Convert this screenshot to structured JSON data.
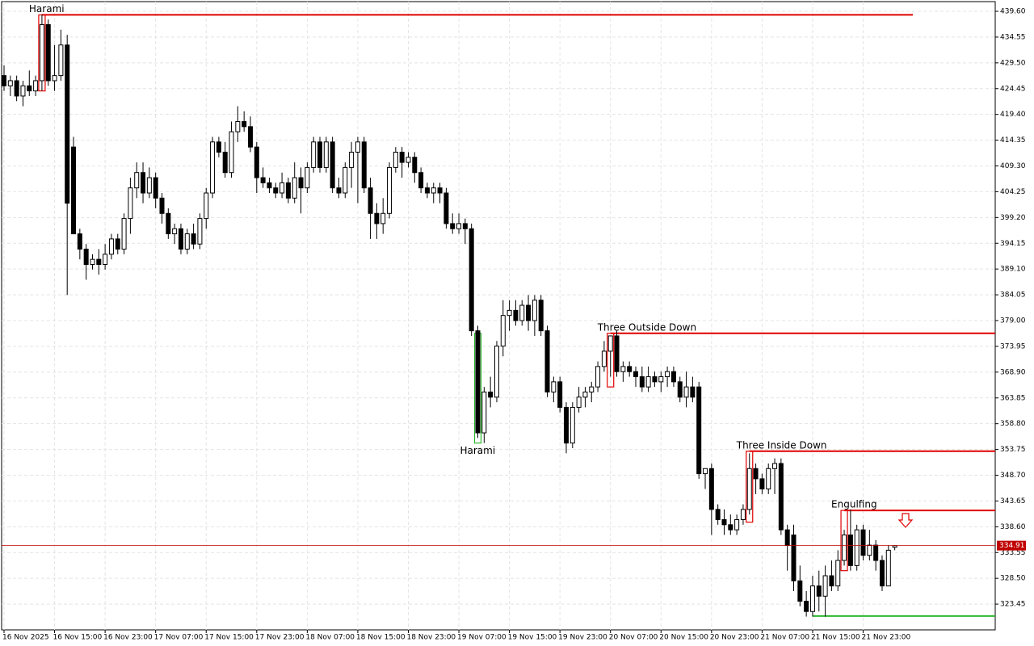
{
  "chart_data": {
    "type": "candlestick",
    "ylim": [
      318.4,
      441.5
    ],
    "yticks": [
      {
        "value": 439.6,
        "label": "439.60"
      },
      434.55,
      {
        "value": 429.5,
        "label": "429.50"
      },
      424.45,
      {
        "value": 419.4,
        "label": "419.40"
      },
      414.35,
      {
        "value": 409.3,
        "label": "409.30"
      },
      404.25,
      {
        "value": 399.2,
        "label": "399.20"
      },
      394.15,
      {
        "value": 389.1,
        "label": "389.10"
      },
      384.05,
      {
        "value": 379,
        "label": "379.00"
      },
      373.95,
      {
        "value": 368.9,
        "label": "368.90"
      },
      363.85,
      {
        "value": 358.8,
        "label": "358.80"
      },
      353.75,
      {
        "value": 348.7,
        "label": "348.70"
      },
      343.65,
      {
        "value": 338.6,
        "label": "338.60"
      },
      333.55,
      {
        "value": 328.5,
        "label": "328.50"
      },
      323.45
    ],
    "grid": true,
    "up_color": "#ffffff",
    "down_color": "#000000",
    "categories": [
      "16 Nov 2025",
      "16 Nov 15:00",
      "16 Nov 23:00",
      "17 Nov 07:00",
      "17 Nov 15:00",
      "17 Nov 23:00",
      "18 Nov 07:00",
      "18 Nov 15:00",
      "18 Nov 23:00",
      "19 Nov 07:00",
      "19 Nov 15:00",
      "19 Nov 23:00",
      "20 Nov 07:00",
      "20 Nov 15:00",
      "20 Nov 23:00",
      "21 Nov 07:00",
      "21 Nov 15:00",
      "21 Nov 23:00"
    ],
    "current_price": 334.91,
    "ohlc": [
      [
        427,
        429,
        424,
        425
      ],
      [
        425,
        427,
        423,
        426
      ],
      [
        426,
        427,
        422,
        423
      ],
      [
        423,
        426,
        421,
        425
      ],
      [
        425,
        428,
        423,
        424
      ],
      [
        424,
        427,
        423,
        426
      ],
      [
        426,
        439,
        424,
        437
      ],
      [
        437,
        438,
        425,
        426
      ],
      [
        426,
        433,
        424,
        427
      ],
      [
        427,
        436,
        426,
        433
      ],
      [
        433,
        435,
        384,
        402
      ],
      [
        413,
        415,
        396,
        396
      ],
      [
        396,
        397,
        391,
        393
      ],
      [
        393,
        394,
        387,
        390
      ],
      [
        390,
        392,
        389,
        391
      ],
      [
        391,
        393,
        388,
        390
      ],
      [
        390,
        394,
        389,
        392
      ],
      [
        392,
        396,
        391,
        395
      ],
      [
        395,
        396,
        392,
        393
      ],
      [
        393,
        400,
        392,
        399
      ],
      [
        399,
        407,
        396,
        405
      ],
      [
        405,
        410,
        403,
        408
      ],
      [
        408,
        410,
        402,
        404
      ],
      [
        404,
        409,
        403,
        407
      ],
      [
        407,
        408,
        401,
        403
      ],
      [
        403,
        404,
        398,
        400
      ],
      [
        400,
        401,
        395,
        396
      ],
      [
        396,
        398,
        394,
        397
      ],
      [
        397,
        398,
        392,
        393
      ],
      [
        393,
        397,
        392,
        396
      ],
      [
        396,
        398,
        393,
        394
      ],
      [
        394,
        400,
        393,
        399
      ],
      [
        399,
        405,
        397,
        404
      ],
      [
        404,
        415,
        403,
        414
      ],
      [
        414,
        415,
        411,
        412
      ],
      [
        412,
        414,
        407,
        408
      ],
      [
        408,
        418,
        407,
        416
      ],
      [
        416,
        421,
        414,
        418
      ],
      [
        418,
        420,
        416,
        417
      ],
      [
        417,
        419,
        412,
        413
      ],
      [
        413,
        414,
        404,
        407
      ],
      [
        407,
        409,
        405,
        406
      ],
      [
        406,
        407,
        404,
        405
      ],
      [
        405,
        406,
        403,
        404
      ],
      [
        404,
        408,
        403,
        406
      ],
      [
        406,
        407,
        402,
        403
      ],
      [
        403,
        410,
        402,
        407
      ],
      [
        407,
        409,
        400,
        405
      ],
      [
        405,
        410,
        404,
        409
      ],
      [
        409,
        415,
        408,
        414
      ],
      [
        414,
        415,
        408,
        409
      ],
      [
        409,
        415,
        408,
        414
      ],
      [
        414,
        415,
        404,
        405
      ],
      [
        405,
        407,
        403,
        404
      ],
      [
        404,
        410,
        403,
        409
      ],
      [
        409,
        414,
        405,
        412
      ],
      [
        412,
        415,
        402,
        414
      ],
      [
        414,
        415,
        404,
        405
      ],
      [
        405,
        407,
        395,
        400
      ],
      [
        400,
        402,
        395,
        398
      ],
      [
        398,
        403,
        396,
        400
      ],
      [
        400,
        410,
        399,
        409
      ],
      [
        409,
        413,
        408,
        412
      ],
      [
        412,
        413,
        407,
        410
      ],
      [
        410,
        412,
        409,
        411
      ],
      [
        411,
        412,
        406,
        408
      ],
      [
        408,
        409,
        404,
        405
      ],
      [
        405,
        406,
        403,
        404
      ],
      [
        404,
        406,
        402,
        405
      ],
      [
        405,
        406,
        402,
        404
      ],
      [
        404,
        405,
        397,
        398
      ],
      [
        398,
        400,
        396,
        397
      ],
      [
        397,
        400,
        396,
        398
      ],
      [
        398,
        399,
        394,
        397
      ],
      [
        397,
        398,
        376,
        377
      ],
      [
        377,
        378,
        356,
        357
      ],
      [
        357,
        366,
        355,
        365
      ],
      [
        365,
        368,
        362,
        364
      ],
      [
        364,
        375,
        363,
        374
      ],
      [
        374,
        383,
        372,
        380
      ],
      [
        380,
        383,
        377,
        381
      ],
      [
        381,
        383,
        378,
        379
      ],
      [
        379,
        383,
        378,
        382
      ],
      [
        382,
        384,
        377,
        379
      ],
      [
        379,
        384,
        376,
        383
      ],
      [
        383,
        384,
        376,
        377
      ],
      [
        377,
        378,
        364,
        365
      ],
      [
        365,
        368,
        363,
        367
      ],
      [
        367,
        368,
        361,
        362
      ],
      [
        362,
        363,
        353,
        355
      ],
      [
        355,
        363,
        354,
        362
      ],
      [
        362,
        366,
        361,
        364
      ],
      [
        364,
        366,
        362,
        365
      ],
      [
        365,
        367,
        363,
        366
      ],
      [
        366,
        371,
        365,
        370
      ],
      [
        370,
        375,
        369,
        373
      ],
      [
        373,
        376,
        368,
        376
      ],
      [
        376,
        377,
        368,
        369
      ],
      [
        369,
        371,
        367,
        370
      ],
      [
        370,
        371,
        368,
        369
      ],
      [
        369,
        370,
        366,
        368
      ],
      [
        368,
        370,
        365,
        366
      ],
      [
        366,
        370,
        365,
        368
      ],
      [
        368,
        369,
        366,
        367
      ],
      [
        367,
        369,
        365,
        368
      ],
      [
        368,
        370,
        366,
        369
      ],
      [
        369,
        370,
        366,
        367
      ],
      [
        367,
        368,
        363,
        364
      ],
      [
        364,
        369,
        362,
        366
      ],
      [
        366,
        368,
        363,
        364
      ],
      [
        366,
        367,
        348,
        349
      ],
      [
        349,
        350,
        346,
        350
      ],
      [
        350,
        351,
        337,
        342
      ],
      [
        342,
        343,
        339,
        340
      ],
      [
        340,
        342,
        337,
        339
      ],
      [
        339,
        341,
        337,
        338
      ],
      [
        338,
        341,
        337,
        340
      ],
      [
        340,
        343,
        339,
        342
      ],
      [
        342,
        353,
        341,
        350
      ],
      [
        350,
        351,
        345,
        348
      ],
      [
        348,
        349,
        345,
        346
      ],
      [
        346,
        351,
        345,
        350
      ],
      [
        350,
        352,
        345,
        351
      ],
      [
        351,
        352,
        337,
        338
      ],
      [
        338,
        339,
        330,
        335
      ],
      [
        337,
        339,
        326,
        328
      ],
      [
        328,
        331,
        323,
        324
      ],
      [
        324,
        326,
        321,
        322
      ],
      [
        322,
        329,
        321,
        327
      ],
      [
        327,
        330,
        322,
        325
      ],
      [
        325,
        331,
        321,
        329
      ],
      [
        329,
        332,
        326,
        327
      ],
      [
        327,
        334,
        326,
        332
      ],
      [
        332,
        338,
        331,
        337
      ],
      [
        337,
        342,
        330,
        331
      ],
      [
        331,
        339,
        330,
        338
      ],
      [
        338,
        339,
        332,
        333
      ],
      [
        333,
        338,
        332,
        335
      ],
      [
        335,
        336,
        330,
        332
      ],
      [
        332,
        333,
        326,
        327
      ],
      [
        327,
        335,
        327,
        334
      ],
      [
        334.6,
        335,
        334,
        334.9
      ]
    ],
    "patterns": [
      {
        "label": "Harami",
        "color": "#e00000",
        "candle": 6,
        "level": 438.9,
        "bottom": 424,
        "end": 1130
      },
      {
        "label": "Harami",
        "color": "#2db82d",
        "candle": 75,
        "level": 376.5,
        "bottom": 355,
        "below": true
      },
      {
        "label": "Three Outside Down",
        "color": "#e00000",
        "candle": 96,
        "level": 376.5,
        "bottom": 366,
        "end": 1232
      },
      {
        "label": "Three Inside Down",
        "color": "#e00000",
        "candle": 118,
        "level": 353.4,
        "bottom": 339.5,
        "end": 1232
      },
      {
        "label": "Engulfing",
        "color": "#e00000",
        "candle": 133,
        "level": 341.8,
        "bottom": 330,
        "end": 1232
      },
      {
        "color": "#2db82d",
        "candle": 128,
        "level": 321.1,
        "end": 1232
      }
    ]
  }
}
